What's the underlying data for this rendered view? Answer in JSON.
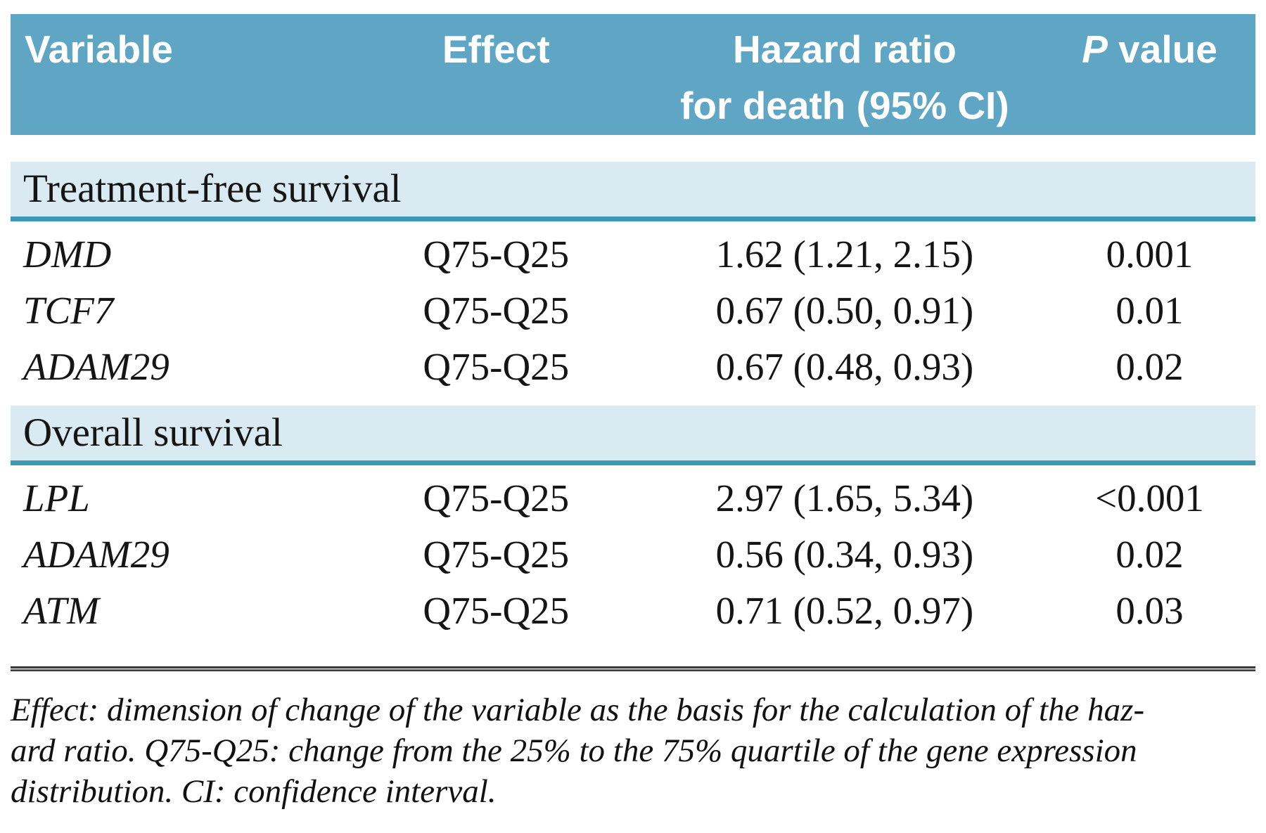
{
  "table": {
    "header": {
      "variable": "Variable",
      "effect": "Effect",
      "hazard_line1": "Hazard ratio",
      "hazard_line2": "for death (95% CI)",
      "p_label": "P",
      "p_suffix": " value"
    },
    "sections": [
      {
        "title": "Treatment-free survival",
        "rows": [
          {
            "variable": "DMD",
            "effect": "Q75-Q25",
            "hazard_ratio": "1.62 (1.21, 2.15)",
            "p_value": "0.001"
          },
          {
            "variable": "TCF7",
            "effect": "Q75-Q25",
            "hazard_ratio": "0.67 (0.50, 0.91)",
            "p_value": "0.01"
          },
          {
            "variable": "ADAM29",
            "effect": "Q75-Q25",
            "hazard_ratio": "0.67 (0.48, 0.93)",
            "p_value": "0.02"
          }
        ]
      },
      {
        "title": "Overall survival",
        "rows": [
          {
            "variable": "LPL",
            "effect": "Q75-Q25",
            "hazard_ratio": "2.97 (1.65, 5.34)",
            "p_value": "<0.001"
          },
          {
            "variable": "ADAM29",
            "effect": "Q75-Q25",
            "hazard_ratio": "0.56 (0.34, 0.93)",
            "p_value": "0.02"
          },
          {
            "variable": "ATM",
            "effect": "Q75-Q25",
            "hazard_ratio": "0.71 (0.52, 0.97)",
            "p_value": "0.03"
          }
        ]
      }
    ],
    "footnote_lines": [
      "Effect: dimension of change of the variable as the basis for the calculation of the haz-",
      "ard ratio. Q75-Q25: change from the 25% to the 75% quartile of the gene expression",
      "distribution. CI: confidence interval."
    ],
    "colors": {
      "header_bg": "#5fa5c4",
      "section_band_bg": "#d9eaf3",
      "section_band_border": "#3b99b4",
      "header_text": "#ffffff",
      "body_text": "#151515"
    }
  }
}
